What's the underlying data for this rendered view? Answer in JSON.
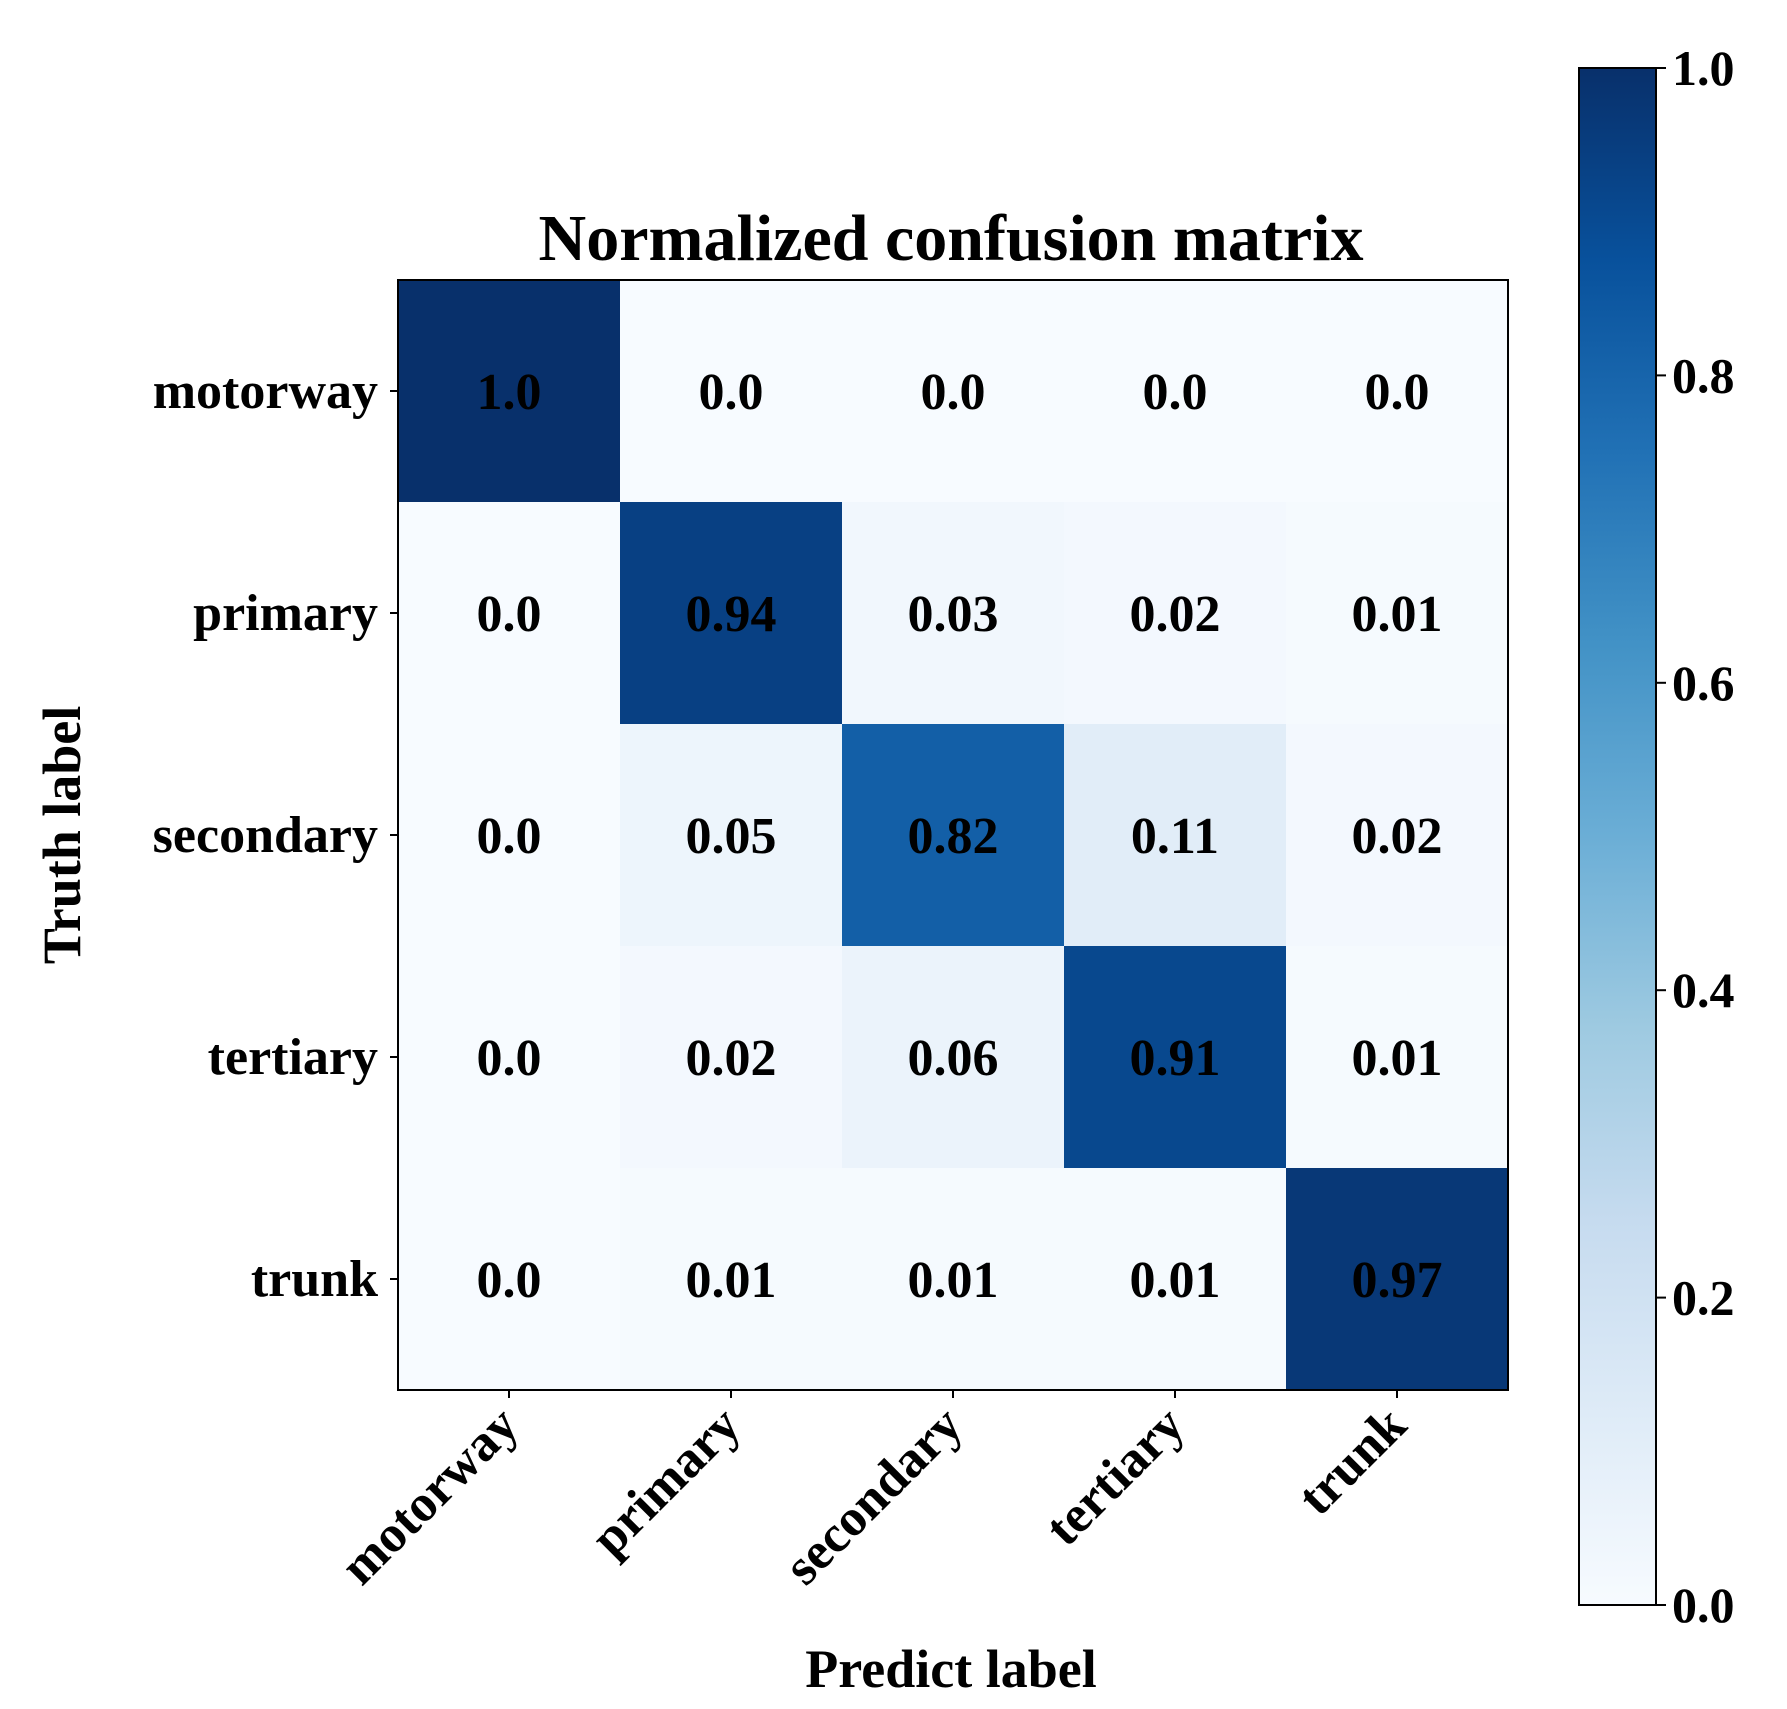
{
  "chart_data": {
    "type": "heatmap",
    "title": "Normalized confusion matrix",
    "xlabel": "Predict label",
    "ylabel": "Truth label",
    "x_categories": [
      "motorway",
      "primary",
      "secondary",
      "tertiary",
      "trunk"
    ],
    "y_categories": [
      "motorway",
      "primary",
      "secondary",
      "tertiary",
      "trunk"
    ],
    "values": [
      [
        1.0,
        0.0,
        0.0,
        0.0,
        0.0
      ],
      [
        0.0,
        0.94,
        0.03,
        0.02,
        0.01
      ],
      [
        0.0,
        0.05,
        0.82,
        0.11,
        0.02
      ],
      [
        0.0,
        0.02,
        0.06,
        0.91,
        0.01
      ],
      [
        0.0,
        0.01,
        0.01,
        0.01,
        0.97
      ]
    ],
    "value_labels": [
      [
        "1.0",
        "0.0",
        "0.0",
        "0.0",
        "0.0"
      ],
      [
        "0.0",
        "0.94",
        "0.03",
        "0.02",
        "0.01"
      ],
      [
        "0.0",
        "0.05",
        "0.82",
        "0.11",
        "0.02"
      ],
      [
        "0.0",
        "0.02",
        "0.06",
        "0.91",
        "0.01"
      ],
      [
        "0.0",
        "0.01",
        "0.01",
        "0.01",
        "0.97"
      ]
    ],
    "colormap": "Blues",
    "colorbar": {
      "range": [
        0.0,
        1.0
      ],
      "ticks": [
        0.0,
        0.2,
        0.4,
        0.6,
        0.8,
        1.0
      ],
      "tick_labels": [
        "0.0",
        "0.2",
        "0.4",
        "0.6",
        "0.8",
        "1.0"
      ]
    },
    "grid": false
  }
}
